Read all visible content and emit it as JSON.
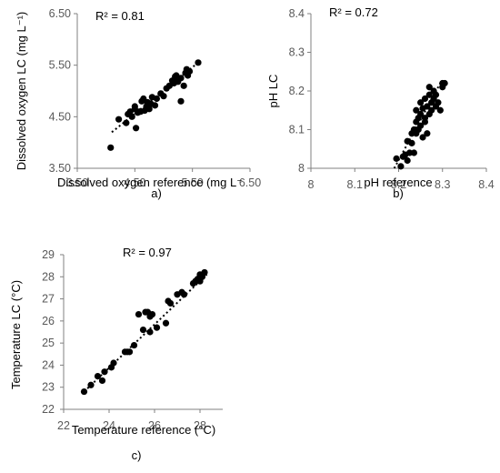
{
  "chart_data": [
    {
      "type": "scatter",
      "panel_label": "a)",
      "r2_label": "R² = 0.81",
      "xlabel": "Dissolved oxygen reference (mg L⁻",
      "ylabel": "Dissolved oxygen LC (mg L⁻¹)",
      "xlim": [
        3.5,
        6.5
      ],
      "ylim": [
        3.5,
        6.5
      ],
      "xticks": [
        "3.50",
        "4.50",
        "5.50",
        "6.50"
      ],
      "yticks": [
        "3.50",
        "4.50",
        "5.50",
        "6.50"
      ],
      "trendline": {
        "x": [
          4.1,
          5.6
        ],
        "y": [
          4.2,
          5.55
        ]
      },
      "points": {
        "x": [
          4.08,
          4.22,
          4.35,
          4.38,
          4.42,
          4.45,
          4.5,
          4.52,
          4.55,
          4.58,
          4.62,
          4.65,
          4.67,
          4.7,
          4.72,
          4.75,
          4.78,
          4.8,
          4.85,
          4.88,
          4.95,
          5.0,
          5.05,
          5.1,
          5.15,
          5.18,
          5.2,
          5.22,
          5.25,
          5.3,
          5.35,
          5.38,
          5.4,
          5.42,
          5.45,
          5.6,
          5.3,
          4.6,
          4.5
        ],
        "y": [
          3.9,
          4.45,
          4.38,
          4.55,
          4.6,
          4.5,
          4.7,
          4.28,
          4.58,
          4.6,
          4.8,
          4.85,
          4.62,
          4.7,
          4.78,
          4.65,
          4.75,
          4.88,
          4.72,
          4.85,
          4.95,
          4.9,
          5.05,
          5.1,
          5.2,
          5.15,
          5.28,
          5.3,
          5.18,
          5.25,
          5.1,
          5.35,
          5.42,
          5.3,
          5.38,
          5.55,
          4.8,
          4.6,
          4.65
        ]
      }
    },
    {
      "type": "scatter",
      "panel_label": "b)",
      "r2_label": "R² = 0.72",
      "xlabel": "pH reference",
      "ylabel": "pH LC",
      "xlim": [
        8.0,
        8.4
      ],
      "ylim": [
        8.0,
        8.4
      ],
      "xticks": [
        "8",
        "8.1",
        "8.2",
        "8.3",
        "8.4"
      ],
      "yticks": [
        "8",
        "8.1",
        "8.2",
        "8.3",
        "8.4"
      ],
      "trendline": {
        "x": [
          8.19,
          8.295
        ],
        "y": [
          8.0,
          8.22
        ]
      },
      "points": {
        "x": [
          8.195,
          8.205,
          8.21,
          8.215,
          8.22,
          8.22,
          8.225,
          8.23,
          8.23,
          8.235,
          8.235,
          8.24,
          8.24,
          8.24,
          8.245,
          8.245,
          8.25,
          8.25,
          8.25,
          8.255,
          8.255,
          8.26,
          8.26,
          8.26,
          8.265,
          8.265,
          8.27,
          8.27,
          8.27,
          8.275,
          8.275,
          8.28,
          8.28,
          8.285,
          8.285,
          8.29,
          8.295,
          8.3,
          8.3,
          8.305
        ],
        "y": [
          8.025,
          8.005,
          8.03,
          8.035,
          8.02,
          8.07,
          8.04,
          8.065,
          8.09,
          8.1,
          8.04,
          8.12,
          8.09,
          8.15,
          8.13,
          8.1,
          8.11,
          8.14,
          8.17,
          8.08,
          8.155,
          8.12,
          8.13,
          8.18,
          8.09,
          8.16,
          8.14,
          8.19,
          8.21,
          8.17,
          8.15,
          8.2,
          8.18,
          8.19,
          8.16,
          8.17,
          8.15,
          8.21,
          8.22,
          8.22
        ]
      }
    },
    {
      "type": "scatter",
      "panel_label": "c)",
      "r2_label": "R² = 0.97",
      "xlabel": "Temperature reference (°C)",
      "ylabel": "Temperature LC (°C)",
      "xlim": [
        22,
        29
      ],
      "ylim": [
        22,
        29
      ],
      "xticks": [
        "22",
        "24",
        "26",
        "28"
      ],
      "yticks": [
        "22",
        "23",
        "24",
        "25",
        "26",
        "27",
        "28",
        "29"
      ],
      "trendline": {
        "x": [
          22.9,
          28.3
        ],
        "y": [
          22.8,
          28.1
        ]
      },
      "points": {
        "x": [
          22.9,
          23.2,
          23.5,
          23.7,
          23.8,
          24.1,
          24.2,
          24.7,
          24.8,
          24.9,
          25.1,
          25.3,
          25.5,
          25.6,
          25.7,
          25.8,
          25.8,
          25.9,
          26.1,
          26.5,
          26.6,
          26.7,
          27.0,
          27.2,
          27.3,
          27.7,
          27.8,
          27.9,
          28.0,
          28.0,
          28.1,
          28.2
        ],
        "y": [
          22.8,
          23.1,
          23.5,
          23.3,
          23.7,
          23.9,
          24.1,
          24.6,
          24.6,
          24.6,
          24.9,
          26.3,
          25.6,
          26.4,
          26.4,
          26.2,
          25.5,
          26.3,
          25.7,
          25.9,
          26.9,
          26.8,
          27.2,
          27.3,
          27.2,
          27.7,
          27.8,
          27.9,
          28.1,
          27.8,
          28.0,
          28.2
        ]
      }
    }
  ]
}
